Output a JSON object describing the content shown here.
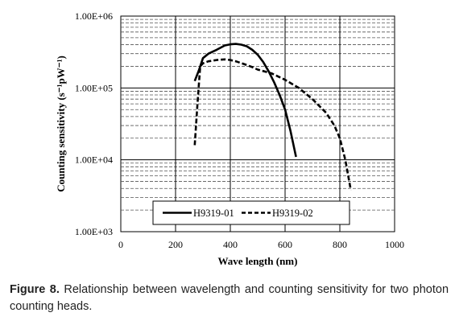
{
  "figure": {
    "caption_label": "Figure 8.",
    "caption_text": " Relationship between wavelength and counting sensitivity for two photon counting heads."
  },
  "chart_data": {
    "type": "line",
    "xlabel": "Wave length (nm)",
    "ylabel": "Counting sensitivity (s⁻¹pW⁻¹)",
    "xlim": [
      0,
      1000
    ],
    "ylim": [
      1000,
      1000000
    ],
    "yscale": "log",
    "x_ticks": [
      "0",
      "200",
      "400",
      "600",
      "800",
      "1000"
    ],
    "y_ticks": [
      "1.00E+03",
      "1.00E+04",
      "1.00E+05",
      "1.00E+06"
    ],
    "grid": true,
    "legend_position": "bottom",
    "series": [
      {
        "name": "H9319-01",
        "style": "solid",
        "color": "#000000",
        "x": [
          270,
          285,
          300,
          320,
          350,
          380,
          400,
          420,
          440,
          460,
          480,
          500,
          520,
          540,
          560,
          580,
          600,
          620,
          640
        ],
        "y": [
          125000,
          175000,
          260000,
          300000,
          340000,
          390000,
          405000,
          410000,
          400000,
          380000,
          340000,
          290000,
          230000,
          170000,
          120000,
          80000,
          50000,
          25000,
          11000
        ]
      },
      {
        "name": "H9319-02",
        "style": "dashed",
        "color": "#000000",
        "x": [
          270,
          280,
          290,
          300,
          320,
          350,
          380,
          400,
          420,
          450,
          480,
          500,
          550,
          600,
          650,
          700,
          750,
          780,
          800,
          820,
          840
        ],
        "y": [
          16000,
          60000,
          200000,
          220000,
          235000,
          245000,
          250000,
          245000,
          235000,
          215000,
          195000,
          180000,
          160000,
          130000,
          100000,
          70000,
          45000,
          30000,
          20000,
          10000,
          3800
        ]
      }
    ]
  }
}
